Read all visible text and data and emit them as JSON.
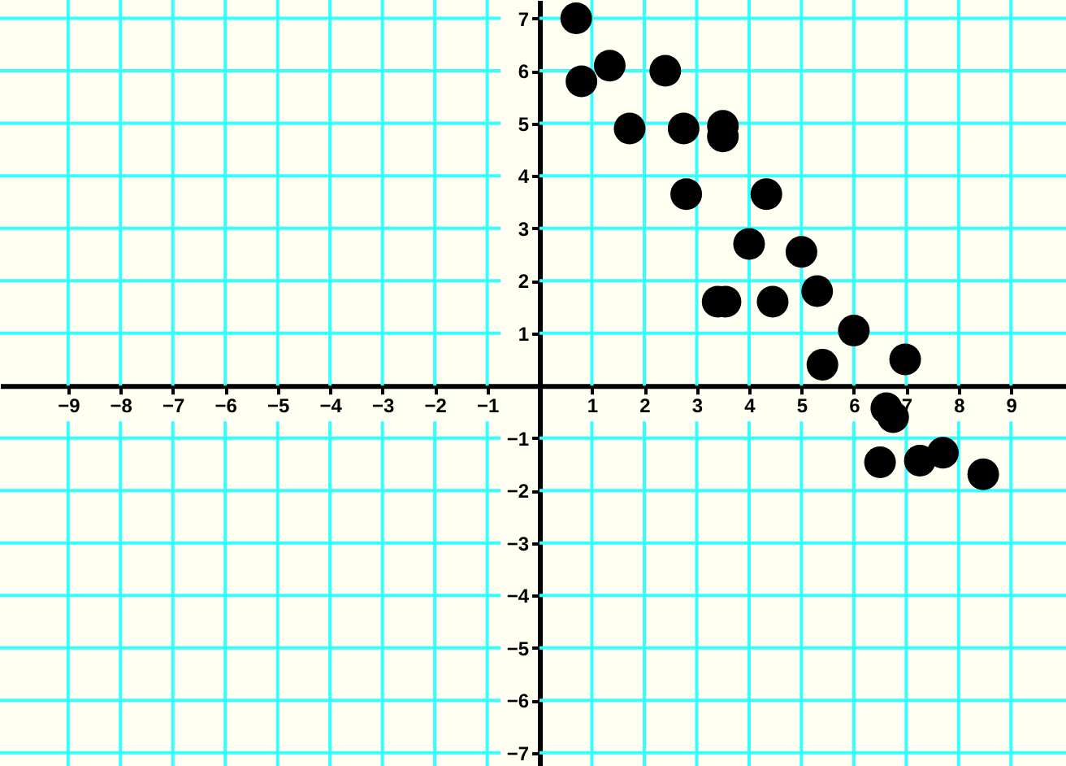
{
  "chart_data": {
    "type": "scatter",
    "x": [
      0.7,
      0.8,
      1.34,
      2.4,
      1.72,
      2.75,
      3.5,
      3.5,
      2.8,
      4.33,
      4.0,
      5.0,
      5.3,
      3.4,
      3.55,
      4.45,
      6.0,
      5.4,
      6.98,
      6.62,
      6.75,
      6.5,
      7.26,
      7.7,
      8.47
    ],
    "series": [
      {
        "color": "#000000",
        "values": [
          7.0,
          5.8,
          6.1,
          6.0,
          4.9,
          4.9,
          4.95,
          4.75,
          3.65,
          3.65,
          2.7,
          2.55,
          1.8,
          1.6,
          1.6,
          1.6,
          1.05,
          0.4,
          0.5,
          -0.43,
          -0.6,
          -1.46,
          -1.43,
          -1.28,
          -1.69
        ]
      }
    ],
    "xlim": [
      -10.3,
      10.05
    ],
    "ylim": [
      -7.25,
      7.35
    ],
    "xticks": [
      -9,
      -8,
      -7,
      -6,
      -5,
      -4,
      -3,
      -2,
      -1,
      1,
      2,
      3,
      4,
      5,
      6,
      7,
      8,
      9
    ],
    "yticks": [
      -7,
      -6,
      -5,
      -4,
      -3,
      -2,
      -1,
      1,
      2,
      3,
      4,
      5,
      6,
      7
    ],
    "grid": true,
    "marker": "circle"
  }
}
